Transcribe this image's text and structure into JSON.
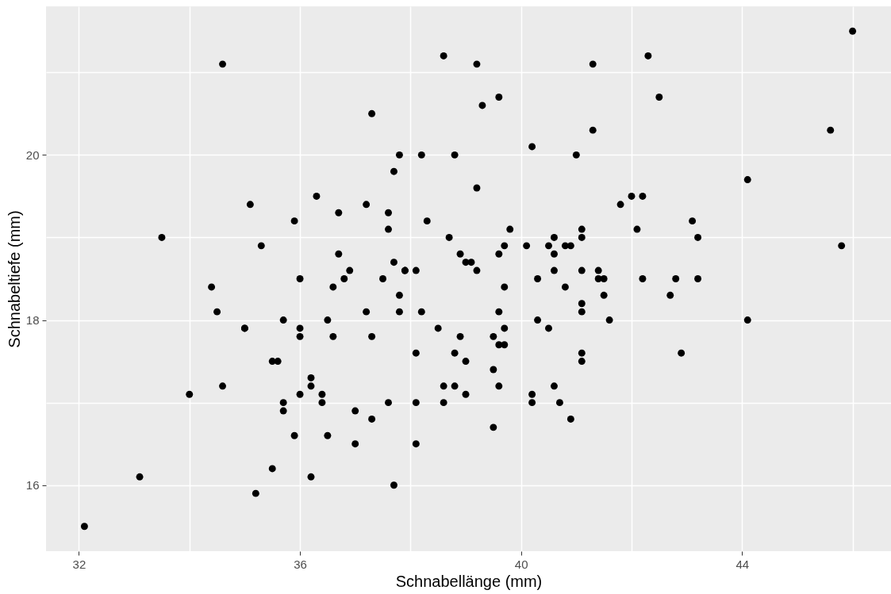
{
  "chart_data": {
    "type": "scatter",
    "xlabel": "Schnabellänge (mm)",
    "ylabel": "Schnabeltiefe (mm)",
    "xlim": [
      31.405,
      46.695
    ],
    "ylim": [
      15.2,
      21.8
    ],
    "xticks": [
      32,
      {
        "value": 34,
        "label": null
      },
      36,
      {
        "value": 38,
        "label": null
      },
      40,
      {
        "value": 42,
        "label": null
      },
      44,
      {
        "value": 46,
        "label": null
      }
    ],
    "yticks": [
      16,
      {
        "value": 17,
        "label": null
      },
      18,
      {
        "value": 19,
        "label": null
      },
      20,
      {
        "value": 21,
        "label": null
      }
    ],
    "grid": true,
    "marker": "circle",
    "series": [
      {
        "color": "#000000",
        "x": [
          39.1,
          39.5,
          40.3,
          36.7,
          39.3,
          38.9,
          39.2,
          41.1,
          38.6,
          34.6,
          36.6,
          38.7,
          42.5,
          34.4,
          46.0,
          37.8,
          37.7,
          35.9,
          38.2,
          38.8,
          35.3,
          40.6,
          40.5,
          37.9,
          40.5,
          39.5,
          37.2,
          39.5,
          40.9,
          36.4,
          39.2,
          38.8,
          42.2,
          37.6,
          39.8,
          36.5,
          40.8,
          36.0,
          44.1,
          37.0,
          39.6,
          41.1,
          36.0,
          42.3,
          39.6,
          40.1,
          35.0,
          42.0,
          34.5,
          41.4,
          39.0,
          40.6,
          36.5,
          37.6,
          35.7,
          41.3,
          37.6,
          41.1,
          36.4,
          41.6,
          35.5,
          41.1,
          35.9,
          41.8,
          33.5,
          39.7,
          39.6,
          45.8,
          35.5,
          42.8,
          40.9,
          37.2,
          36.2,
          42.1,
          34.6,
          42.9,
          36.7,
          35.1,
          37.3,
          41.3,
          36.3,
          36.9,
          38.3,
          38.9,
          35.7,
          41.1,
          34.0,
          39.6,
          36.2,
          40.8,
          38.1,
          40.3,
          33.1,
          43.2,
          35.0,
          41.0,
          37.7,
          37.8,
          37.9,
          39.7,
          38.6,
          38.2,
          38.1,
          43.2,
          38.1,
          45.6,
          39.7,
          42.2,
          39.6,
          42.7,
          38.6,
          37.3,
          35.7,
          41.1,
          36.2,
          37.7,
          40.2,
          41.4,
          35.2,
          40.6,
          38.8,
          41.5,
          39.0,
          44.1,
          38.5,
          43.1,
          36.8,
          37.5,
          38.1,
          41.1,
          35.6,
          40.2,
          37.0,
          39.7,
          40.2,
          40.6,
          32.1,
          40.7,
          37.3,
          39.0,
          39.2,
          36.6,
          36.0,
          37.8,
          36.0,
          41.5
        ],
        "values": [
          18.7,
          17.4,
          18.0,
          19.3,
          20.6,
          17.8,
          19.6,
          17.6,
          21.2,
          21.1,
          17.8,
          19.0,
          20.7,
          18.4,
          21.5,
          18.3,
          18.7,
          19.2,
          18.1,
          17.2,
          18.9,
          18.6,
          17.9,
          18.6,
          18.9,
          16.7,
          18.1,
          17.8,
          18.9,
          17.0,
          21.1,
          20.0,
          18.5,
          19.3,
          19.1,
          18.0,
          18.4,
          18.5,
          19.7,
          16.9,
          18.8,
          19.0,
          17.9,
          21.2,
          17.7,
          18.9,
          17.9,
          19.5,
          18.1,
          18.6,
          17.5,
          18.8,
          16.6,
          19.1,
          16.9,
          21.1,
          17.0,
          18.2,
          17.1,
          18.0,
          16.2,
          19.1,
          16.6,
          19.4,
          19.0,
          18.4,
          17.2,
          18.9,
          17.5,
          18.5,
          16.8,
          19.4,
          16.1,
          19.1,
          17.2,
          17.6,
          18.8,
          19.4,
          17.8,
          20.3,
          19.5,
          18.6,
          19.2,
          18.8,
          18.0,
          18.1,
          17.1,
          18.1,
          17.3,
          18.9,
          18.6,
          18.5,
          16.1,
          18.5,
          17.9,
          20.0,
          16.0,
          20.0,
          18.6,
          18.9,
          17.2,
          20.0,
          17.0,
          19.0,
          16.5,
          20.3,
          17.7,
          19.5,
          20.7,
          18.3,
          17.0,
          20.5,
          17.0,
          18.6,
          17.2,
          19.8,
          17.0,
          18.5,
          15.9,
          19.0,
          17.6,
          18.3,
          17.1,
          18.0,
          17.9,
          19.2,
          18.5,
          18.5,
          17.6,
          17.5,
          17.5,
          20.1,
          16.5,
          17.9,
          17.1,
          17.2,
          15.5,
          17.0,
          16.8,
          18.7,
          18.6,
          18.4,
          17.8,
          18.1,
          17.1,
          18.5
        ]
      }
    ]
  }
}
